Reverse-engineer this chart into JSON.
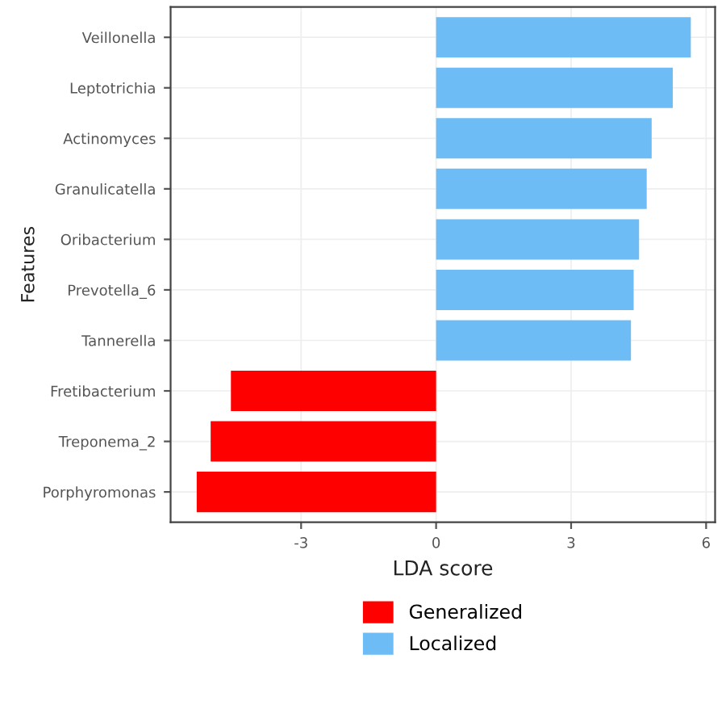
{
  "chart_data": {
    "type": "bar",
    "orientation": "horizontal",
    "xlabel": "LDA score",
    "ylabel": "Features",
    "categories": [
      "Veillonella",
      "Leptotrichia",
      "Actinomyces",
      "Granulicatella",
      "Oribacterium",
      "Prevotella_6",
      "Tannerella",
      "Fretibacterium",
      "Treponema_2",
      "Porphyromonas"
    ],
    "series": [
      {
        "name": "Generalized",
        "color": "#ff0000",
        "values": [
          null,
          null,
          null,
          null,
          null,
          null,
          null,
          -4.56,
          -5.01,
          -5.32
        ]
      },
      {
        "name": "Localized",
        "color": "#6ebcf5",
        "values": [
          5.66,
          5.26,
          4.79,
          4.68,
          4.51,
          4.39,
          4.33,
          null,
          null,
          null
        ]
      }
    ],
    "xlim": [
      -5.9,
      6.2
    ],
    "xticks": [
      -3,
      0,
      3,
      6
    ],
    "grid": true,
    "legend": "bottom"
  }
}
